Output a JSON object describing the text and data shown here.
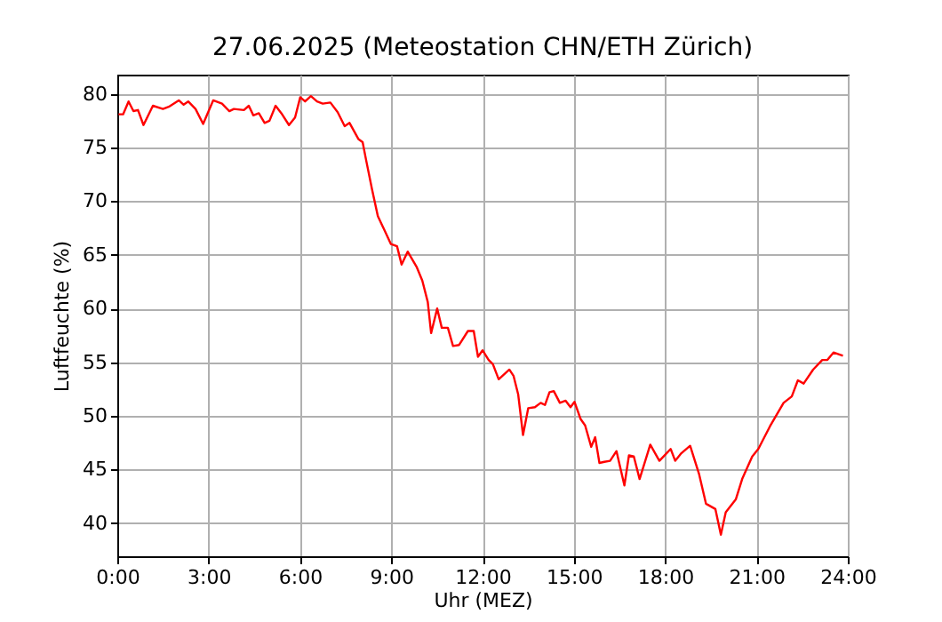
{
  "chart_data": {
    "type": "line",
    "title": "27.06.2025  (Meteostation CHN/ETH Zürich)",
    "xlabel": "Uhr (MEZ)",
    "ylabel": "Luftfeuchte (%)",
    "xlim": [
      0,
      24
    ],
    "ylim": [
      36.9,
      81.8
    ],
    "xticks": [
      {
        "value": 0,
        "label": "0:00"
      },
      {
        "value": 3,
        "label": "3:00"
      },
      {
        "value": 6,
        "label": "6:00"
      },
      {
        "value": 9,
        "label": "9:00"
      },
      {
        "value": 12,
        "label": "12:00"
      },
      {
        "value": 15,
        "label": "15:00"
      },
      {
        "value": 18,
        "label": "18:00"
      },
      {
        "value": 21,
        "label": "21:00"
      },
      {
        "value": 24,
        "label": "24:00"
      }
    ],
    "yticks": [
      40,
      45,
      50,
      55,
      60,
      65,
      70,
      75,
      80
    ],
    "grid": true,
    "x": [
      0.04,
      0.19,
      0.37,
      0.53,
      0.68,
      0.86,
      1.17,
      1.5,
      1.69,
      2.02,
      2.18,
      2.33,
      2.57,
      2.82,
      3.15,
      3.44,
      3.68,
      3.83,
      4.16,
      4.32,
      4.47,
      4.65,
      4.84,
      5.0,
      5.2,
      5.39,
      5.64,
      5.84,
      6.01,
      6.17,
      6.36,
      6.56,
      6.75,
      7.0,
      7.24,
      7.47,
      7.63,
      7.92,
      8.06,
      8.17,
      8.37,
      8.56,
      8.76,
      8.99,
      9.19,
      9.34,
      9.54,
      9.83,
      10.02,
      10.2,
      10.31,
      10.51,
      10.66,
      10.86,
      11.03,
      11.23,
      11.52,
      11.71,
      11.85,
      12.0,
      12.2,
      12.34,
      12.53,
      12.88,
      13.02,
      13.17,
      13.33,
      13.5,
      13.72,
      13.91,
      14.05,
      14.2,
      14.34,
      14.54,
      14.73,
      14.89,
      15.02,
      15.22,
      15.37,
      15.57,
      15.7,
      15.84,
      16.0,
      16.19,
      16.4,
      16.66,
      16.81,
      16.97,
      17.16,
      17.51,
      17.81,
      18.18,
      18.33,
      18.53,
      18.82,
      19.11,
      19.34,
      19.65,
      19.83,
      19.99,
      20.32,
      20.53,
      20.86,
      21.06,
      21.44,
      21.89,
      22.16,
      22.36,
      22.55,
      22.86,
      23.16,
      23.33,
      23.53,
      23.84
    ],
    "series": [
      {
        "color": "#ff0000",
        "values": [
          78.1,
          78.1,
          79.3,
          78.4,
          78.5,
          77.1,
          78.9,
          78.6,
          78.8,
          79.4,
          79.0,
          79.3,
          78.6,
          77.2,
          79.4,
          79.1,
          78.4,
          78.6,
          78.5,
          78.9,
          78.0,
          78.2,
          77.3,
          77.5,
          78.9,
          78.2,
          77.1,
          77.8,
          79.7,
          79.3,
          79.8,
          79.3,
          79.1,
          79.2,
          78.3,
          77.0,
          77.3,
          75.8,
          75.5,
          73.9,
          71.1,
          68.6,
          67.4,
          66.0,
          65.8,
          64.1,
          65.3,
          63.9,
          62.6,
          60.6,
          57.7,
          60.0,
          58.2,
          58.2,
          56.5,
          56.6,
          57.9,
          57.9,
          55.5,
          56.1,
          55.2,
          54.8,
          53.4,
          54.3,
          53.7,
          52.0,
          48.2,
          50.7,
          50.8,
          51.2,
          51.0,
          52.2,
          52.3,
          51.2,
          51.4,
          50.8,
          51.3,
          49.7,
          49.1,
          47.1,
          48.0,
          45.6,
          45.7,
          45.8,
          46.7,
          43.5,
          46.3,
          46.2,
          44.1,
          47.3,
          45.8,
          46.9,
          45.8,
          46.5,
          47.2,
          44.6,
          41.8,
          41.3,
          38.9,
          41.0,
          42.2,
          44.1,
          46.2,
          46.9,
          49.0,
          51.2,
          51.8,
          53.3,
          53.0,
          54.3,
          55.2,
          55.2,
          55.9,
          55.6
        ]
      }
    ]
  }
}
